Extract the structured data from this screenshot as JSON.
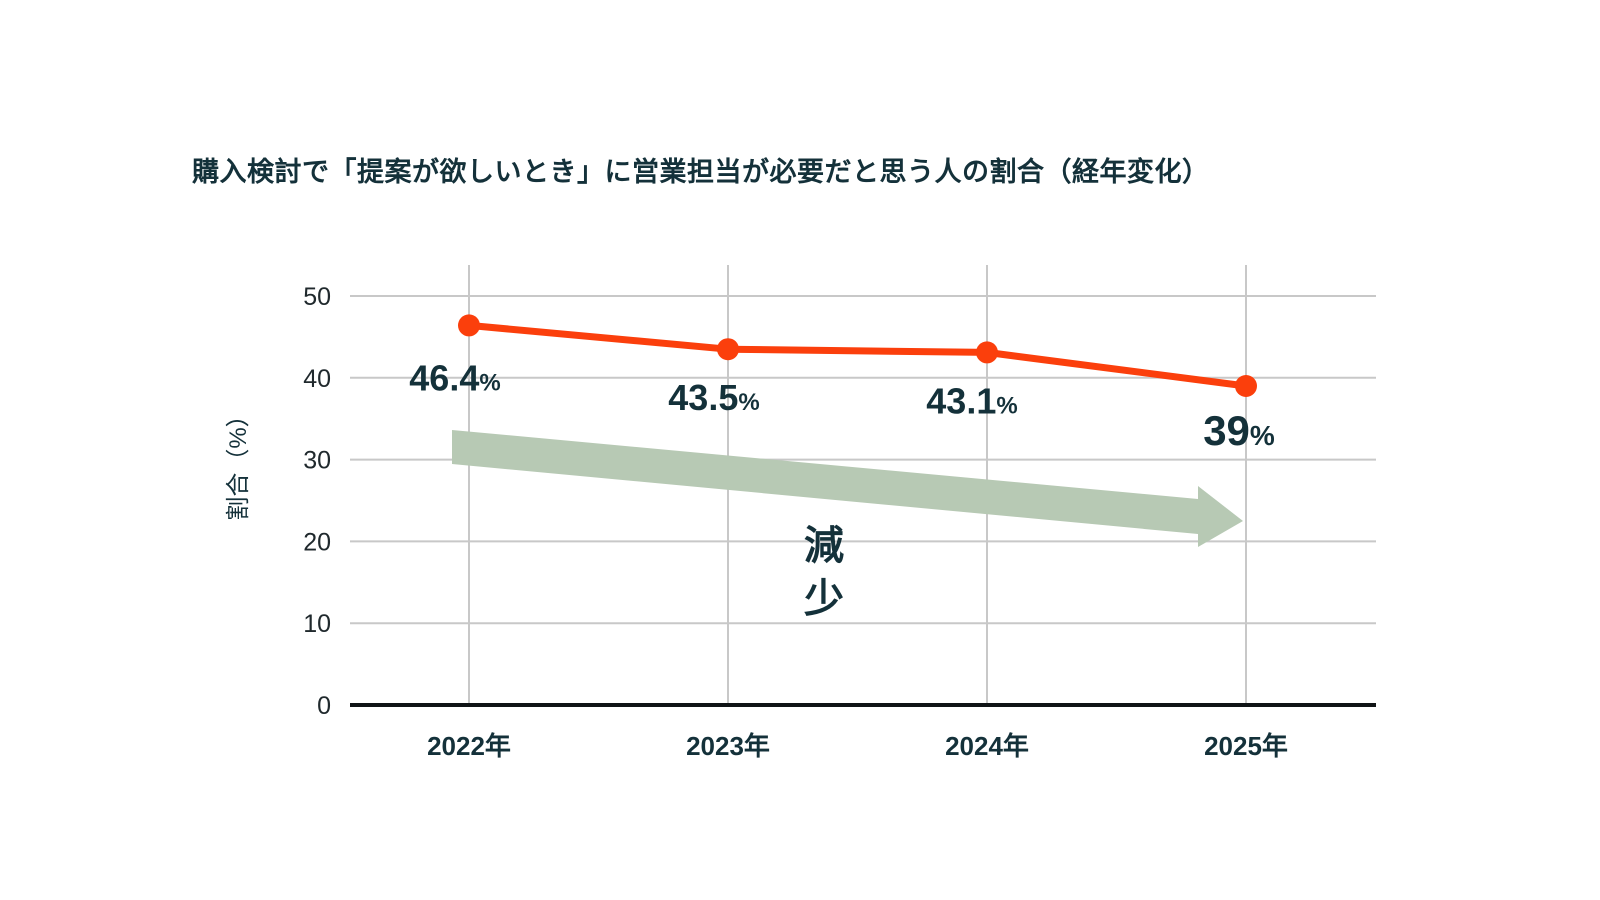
{
  "title": "購入検討で「提案が欲しいとき」に営業担当が必要だと思う人の割合（経年変化）",
  "chart_data": {
    "type": "line",
    "title": "購入検討で「提案が欲しいとき」に営業担当が必要だと思う人の割合（経年変化）",
    "categories": [
      "2022年",
      "2023年",
      "2024年",
      "2025年"
    ],
    "values": [
      46.4,
      43.5,
      43.1,
      39
    ],
    "value_labels": [
      "46.4",
      "43.5",
      "43.1",
      "39"
    ],
    "value_suffix": "%",
    "xlabel": "",
    "ylabel": "割合（%）",
    "yticks": [
      0,
      10,
      20,
      30,
      40,
      50
    ],
    "ylim": [
      0,
      52
    ],
    "grid": "on",
    "legend": "none",
    "annotation": {
      "label": "減少",
      "shape": "arrow-down-right"
    },
    "colors": {
      "line": "#fb3f0c",
      "marker": "#fb3f0c",
      "text": "#14313a",
      "tick_text": "#20292d",
      "grid": "#c8c8c8",
      "axis": "#101416",
      "arrow": "#b7c9b4",
      "background": "#ffffff"
    }
  }
}
